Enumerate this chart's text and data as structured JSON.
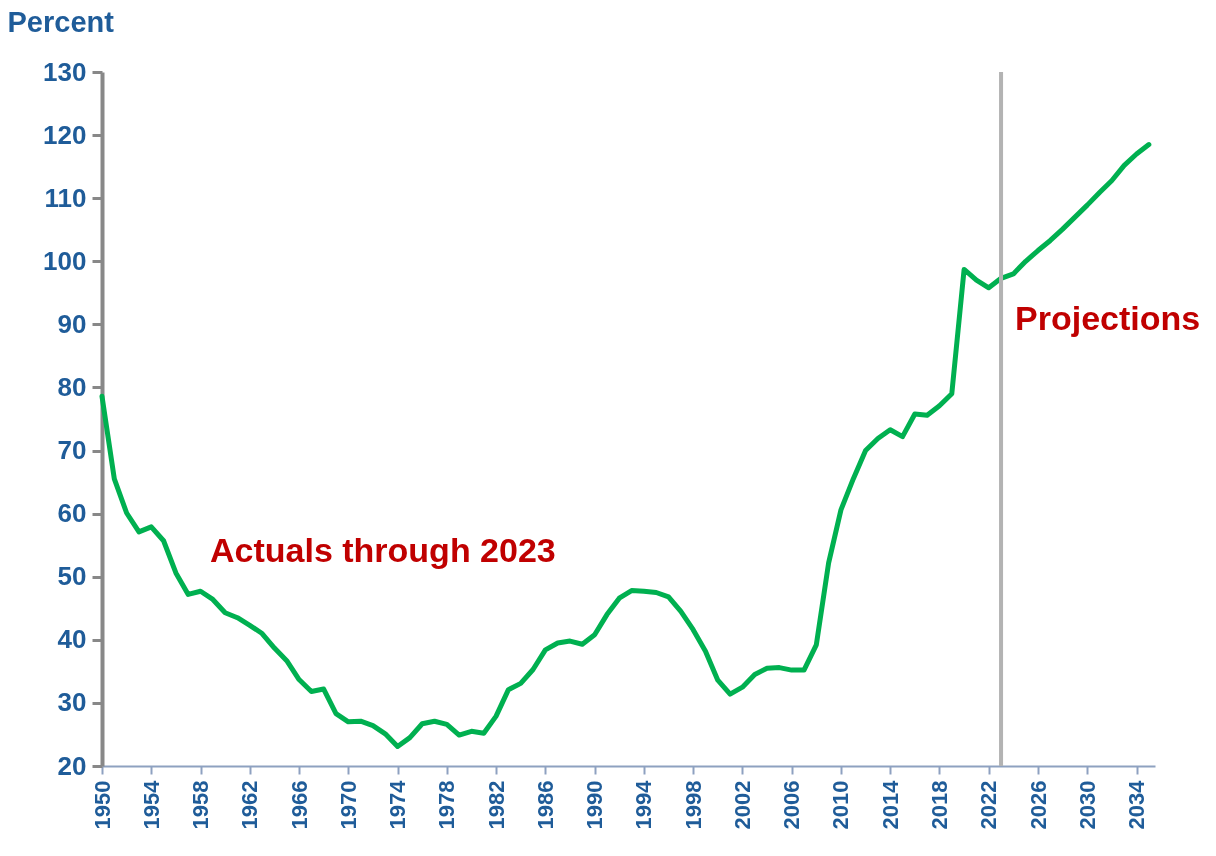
{
  "chart_data": {
    "type": "line",
    "ylabel": "Percent",
    "x": [
      1950,
      1951,
      1952,
      1953,
      1954,
      1955,
      1956,
      1957,
      1958,
      1959,
      1960,
      1961,
      1962,
      1963,
      1964,
      1965,
      1966,
      1967,
      1968,
      1969,
      1970,
      1971,
      1972,
      1973,
      1974,
      1975,
      1976,
      1977,
      1978,
      1979,
      1980,
      1981,
      1982,
      1983,
      1984,
      1985,
      1986,
      1987,
      1988,
      1989,
      1990,
      1991,
      1992,
      1993,
      1994,
      1995,
      1996,
      1997,
      1998,
      1999,
      2000,
      2001,
      2002,
      2003,
      2004,
      2005,
      2006,
      2007,
      2008,
      2009,
      2010,
      2011,
      2012,
      2013,
      2014,
      2015,
      2016,
      2017,
      2018,
      2019,
      2020,
      2021,
      2022,
      2023,
      2024,
      2025,
      2026,
      2027,
      2028,
      2029,
      2030,
      2031,
      2032,
      2033,
      2034,
      2035
    ],
    "series": [
      {
        "color": "#00b050",
        "values": [
          78.6,
          65.5,
          60.1,
          57.1,
          57.9,
          55.7,
          50.6,
          47.2,
          47.7,
          46.4,
          44.3,
          43.5,
          42.3,
          41.0,
          38.7,
          36.7,
          33.7,
          31.8,
          32.2,
          28.3,
          27.0,
          27.1,
          26.4,
          25.1,
          23.1,
          24.5,
          26.7,
          27.1,
          26.6,
          24.9,
          25.5,
          25.2,
          27.9,
          32.1,
          33.1,
          35.3,
          38.4,
          39.5,
          39.8,
          39.3,
          40.8,
          44.0,
          46.6,
          47.8,
          47.7,
          47.5,
          46.8,
          44.5,
          41.6,
          38.2,
          33.6,
          31.4,
          32.5,
          34.5,
          35.5,
          35.6,
          35.2,
          35.2,
          39.2,
          52.2,
          60.6,
          65.5,
          70.0,
          71.9,
          73.3,
          72.2,
          75.8,
          75.6,
          77.1,
          79.0,
          98.7,
          97.0,
          95.8,
          97.3,
          98.0,
          100.0,
          101.7,
          103.3,
          105.1,
          107.0,
          108.9,
          110.9,
          112.8,
          115.2,
          117.0,
          118.5
        ]
      }
    ],
    "xlim": [
      1950,
      2035.5
    ],
    "xticks": [
      1950,
      1954,
      1958,
      1962,
      1966,
      1970,
      1974,
      1978,
      1982,
      1986,
      1990,
      1994,
      1998,
      2002,
      2006,
      2010,
      2014,
      2018,
      2022,
      2026,
      2030,
      2034
    ],
    "ylim": [
      20,
      130
    ],
    "yticks": [
      20,
      30,
      40,
      50,
      60,
      70,
      80,
      90,
      100,
      110,
      120,
      130
    ],
    "ref_lines": [
      {
        "axis": "x",
        "value": 2023,
        "label": "Projections",
        "color": "#b3b3b3"
      }
    ],
    "annotations": [
      "Actuals through 2023"
    ],
    "grid": false,
    "legend": false,
    "marker": "none",
    "line_style": "solid"
  }
}
